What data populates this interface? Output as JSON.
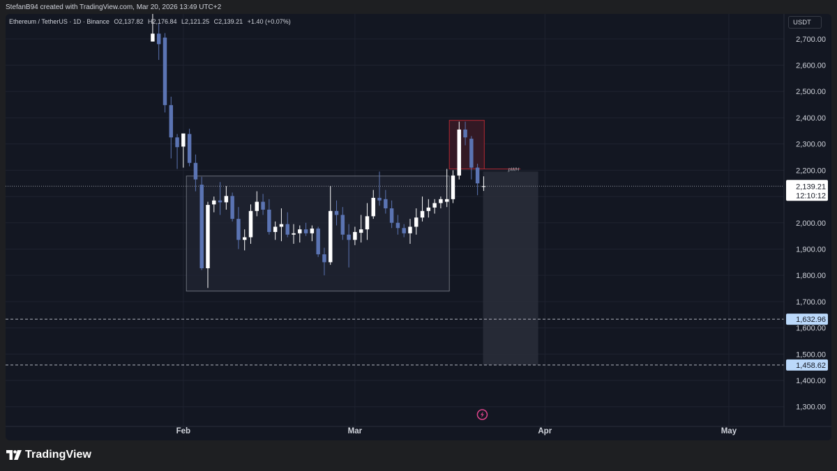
{
  "header": {
    "caption": "StefanB94 created with TradingView.com, Mar 20, 2026 13:49 UTC+2"
  },
  "legend": {
    "symbol": "Ethereum / TetherUS · 1D · Binance",
    "open": "O2,137.82",
    "high": "H2,176.84",
    "low": "L2,121.25",
    "close": "C2,139.21",
    "change": "+1.40 (+0.07%)"
  },
  "currency": "USDT",
  "footer": {
    "brand": "TradingView"
  },
  "colors": {
    "background": "#131722",
    "up": "#ffffff",
    "down": "#5b74b3",
    "zone_border": "#b22833",
    "zone_fill": "#3a1a24",
    "pwh_line": "#b22833"
  },
  "chart_data": {
    "type": "candlestick",
    "title": "Ethereum / TetherUS · 1D · Binance",
    "y_axis": {
      "ticks": [
        "2,700.00",
        "2,600.00",
        "2,500.00",
        "2,400.00",
        "2,300.00",
        "2,200.00",
        "2,100.00",
        "2,000.00",
        "1,900.00",
        "1,800.00",
        "1,700.00",
        "1,600.00",
        "1,500.00",
        "1,400.00",
        "1,300.00"
      ],
      "ylim": [
        1225,
        2795
      ],
      "position": "right"
    },
    "x_axis": {
      "ticks": [
        "Feb",
        "Mar",
        "Apr",
        "May"
      ],
      "tick_dates": [
        "2026-02-01",
        "2026-03-01",
        "2026-04-01",
        "2026-05-01"
      ],
      "xlim": [
        "2026-01-03",
        "2026-05-10"
      ]
    },
    "grid": true,
    "candles": [
      {
        "date": "2026-01-27",
        "open": 2690,
        "high": 2795,
        "low": 2690,
        "close": 2720
      },
      {
        "date": "2026-01-28",
        "open": 2720,
        "high": 2760,
        "low": 2620,
        "close": 2680
      },
      {
        "date": "2026-01-29",
        "open": 2705,
        "high": 2722,
        "low": 2420,
        "close": 2448
      },
      {
        "date": "2026-01-30",
        "open": 2448,
        "high": 2480,
        "low": 2245,
        "close": 2325
      },
      {
        "date": "2026-01-31",
        "open": 2325,
        "high": 2338,
        "low": 2205,
        "close": 2288
      },
      {
        "date": "2026-02-01",
        "open": 2290,
        "high": 2330,
        "low": 2210,
        "close": 2340
      },
      {
        "date": "2026-02-02",
        "open": 2338,
        "high": 2358,
        "low": 2215,
        "close": 2228
      },
      {
        "date": "2026-02-03",
        "open": 2228,
        "high": 2260,
        "low": 2120,
        "close": 2165
      },
      {
        "date": "2026-02-04",
        "open": 2145,
        "high": 2175,
        "low": 1820,
        "close": 1827
      },
      {
        "date": "2026-02-05",
        "open": 1827,
        "high": 2080,
        "low": 1752,
        "close": 2068
      },
      {
        "date": "2026-02-06",
        "open": 2070,
        "high": 2100,
        "low": 2040,
        "close": 2085
      },
      {
        "date": "2026-02-07",
        "open": 2085,
        "high": 2155,
        "low": 2030,
        "close": 2078
      },
      {
        "date": "2026-02-08",
        "open": 2078,
        "high": 2140,
        "low": 2050,
        "close": 2102
      },
      {
        "date": "2026-02-09",
        "open": 2102,
        "high": 2115,
        "low": 2005,
        "close": 2015
      },
      {
        "date": "2026-02-10",
        "open": 2015,
        "high": 2060,
        "low": 1900,
        "close": 1935
      },
      {
        "date": "2026-02-11",
        "open": 1935,
        "high": 1975,
        "low": 1895,
        "close": 1945
      },
      {
        "date": "2026-02-12",
        "open": 1945,
        "high": 2070,
        "low": 1920,
        "close": 2045
      },
      {
        "date": "2026-02-13",
        "open": 2045,
        "high": 2120,
        "low": 2025,
        "close": 2080
      },
      {
        "date": "2026-02-14",
        "open": 2080,
        "high": 2110,
        "low": 2030,
        "close": 2050
      },
      {
        "date": "2026-02-15",
        "open": 2050,
        "high": 2090,
        "low": 1955,
        "close": 1965
      },
      {
        "date": "2026-02-16",
        "open": 1965,
        "high": 2005,
        "low": 1935,
        "close": 1985
      },
      {
        "date": "2026-02-17",
        "open": 1985,
        "high": 2055,
        "low": 1930,
        "close": 1995
      },
      {
        "date": "2026-02-18",
        "open": 1995,
        "high": 2040,
        "low": 1945,
        "close": 1955
      },
      {
        "date": "2026-02-19",
        "open": 1955,
        "high": 1995,
        "low": 1920,
        "close": 1960
      },
      {
        "date": "2026-02-20",
        "open": 1960,
        "high": 1990,
        "low": 1925,
        "close": 1975
      },
      {
        "date": "2026-02-21",
        "open": 1975,
        "high": 2000,
        "low": 1950,
        "close": 1960
      },
      {
        "date": "2026-02-22",
        "open": 1960,
        "high": 1990,
        "low": 1930,
        "close": 1978
      },
      {
        "date": "2026-02-23",
        "open": 1978,
        "high": 1985,
        "low": 1870,
        "close": 1880
      },
      {
        "date": "2026-02-24",
        "open": 1880,
        "high": 1905,
        "low": 1800,
        "close": 1850
      },
      {
        "date": "2026-02-25",
        "open": 1850,
        "high": 2140,
        "low": 1840,
        "close": 2045
      },
      {
        "date": "2026-02-26",
        "open": 2045,
        "high": 2085,
        "low": 1990,
        "close": 2030
      },
      {
        "date": "2026-02-27",
        "open": 2030,
        "high": 2060,
        "low": 1935,
        "close": 1955
      },
      {
        "date": "2026-02-28",
        "open": 1955,
        "high": 1995,
        "low": 1830,
        "close": 1935
      },
      {
        "date": "2026-03-01",
        "open": 1935,
        "high": 1985,
        "low": 1915,
        "close": 1965
      },
      {
        "date": "2026-03-02",
        "open": 1962,
        "high": 2030,
        "low": 1925,
        "close": 1975
      },
      {
        "date": "2026-03-03",
        "open": 1975,
        "high": 2075,
        "low": 1935,
        "close": 2025
      },
      {
        "date": "2026-03-04",
        "open": 2025,
        "high": 2125,
        "low": 2015,
        "close": 2095
      },
      {
        "date": "2026-03-05",
        "open": 2095,
        "high": 2195,
        "low": 2065,
        "close": 2085
      },
      {
        "date": "2026-03-06",
        "open": 2090,
        "high": 2125,
        "low": 2035,
        "close": 2055
      },
      {
        "date": "2026-03-07",
        "open": 2055,
        "high": 2085,
        "low": 1980,
        "close": 2000
      },
      {
        "date": "2026-03-08",
        "open": 2000,
        "high": 2030,
        "low": 1955,
        "close": 1980
      },
      {
        "date": "2026-03-09",
        "open": 1980,
        "high": 1995,
        "low": 1945,
        "close": 1960
      },
      {
        "date": "2026-03-10",
        "open": 1960,
        "high": 2015,
        "low": 1920,
        "close": 1985
      },
      {
        "date": "2026-03-11",
        "open": 1985,
        "high": 2055,
        "low": 1955,
        "close": 2020
      },
      {
        "date": "2026-03-12",
        "open": 2020,
        "high": 2100,
        "low": 2005,
        "close": 2045
      },
      {
        "date": "2026-03-13",
        "open": 2045,
        "high": 2090,
        "low": 2020,
        "close": 2058
      },
      {
        "date": "2026-03-14",
        "open": 2058,
        "high": 2090,
        "low": 2035,
        "close": 2075
      },
      {
        "date": "2026-03-15",
        "open": 2075,
        "high": 2100,
        "low": 2055,
        "close": 2090
      },
      {
        "date": "2026-03-16",
        "open": 2080,
        "high": 2205,
        "low": 2060,
        "close": 2090
      },
      {
        "date": "2026-03-17",
        "open": 2090,
        "high": 2200,
        "low": 2075,
        "close": 2180
      },
      {
        "date": "2026-03-18",
        "open": 2180,
        "high": 2385,
        "low": 2165,
        "close": 2355
      },
      {
        "date": "2026-03-19",
        "open": 2355,
        "high": 2385,
        "low": 2295,
        "close": 2325
      },
      {
        "date": "2026-03-20",
        "open": 2320,
        "high": 2330,
        "low": 2165,
        "close": 2210
      },
      {
        "date": "2026-03-21",
        "open": 2210,
        "high": 2225,
        "low": 2105,
        "close": 2150
      },
      {
        "date": "2026-03-22",
        "open": 2137.82,
        "high": 2176.84,
        "low": 2121.25,
        "close": 2139.21
      }
    ],
    "range_box": {
      "start": "2026-02-02",
      "end": "2026-03-16",
      "top": 2178,
      "bottom": 1740
    },
    "supply_zone": {
      "start": "2026-03-17",
      "end": "2026-03-22",
      "top": 2390,
      "bottom": 2205
    },
    "pwh": {
      "label": "pWH",
      "price": 2205,
      "start": "2026-03-17",
      "end": "2026-03-28"
    },
    "projection_box": {
      "start": "2026-03-22",
      "end": "2026-03-31",
      "top": 2195,
      "bottom": 1458.62
    },
    "current_price": {
      "value": "2,139.21",
      "countdown": "12:10:12",
      "price": 2139.21
    },
    "levels": [
      {
        "value": "1,632.96",
        "price": 1632.96
      },
      {
        "value": "1,458.62",
        "price": 1458.62
      }
    ]
  }
}
